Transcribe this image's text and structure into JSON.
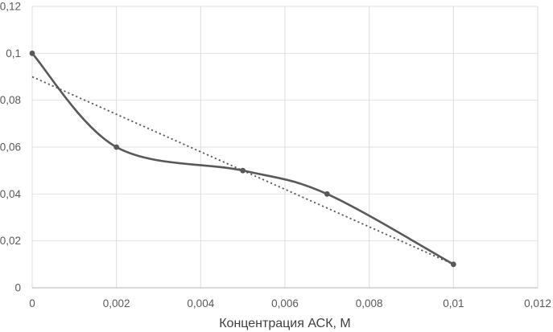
{
  "chart_data": {
    "type": "line",
    "title": "",
    "xlabel": "Концентрация АСК, М",
    "ylabel": "",
    "x": [
      0,
      0.002,
      0.005,
      0.007,
      0.01
    ],
    "series": [
      {
        "values": [
          0.1,
          0.06,
          0.05,
          0.04,
          0.01
        ],
        "smooth": true,
        "markers": true,
        "color": "#595959",
        "line_width": 2.6,
        "marker_radius": 3.4
      }
    ],
    "trendline": {
      "x": [
        0,
        0.01
      ],
      "values": [
        0.09,
        0.01
      ],
      "style": "dotted",
      "color": "#595959",
      "line_width": 1.8
    },
    "xlim": [
      0,
      0.012
    ],
    "ylim": [
      0,
      0.12
    ],
    "xticks": [
      0,
      0.002,
      0.004,
      0.006,
      0.008,
      0.01,
      0.012
    ],
    "yticks": [
      0,
      0.02,
      0.04,
      0.06,
      0.08,
      0.1,
      0.12
    ],
    "xtick_labels": [
      "0",
      "0,002",
      "0,004",
      "0,006",
      "0,008",
      "0,01",
      "0,012"
    ],
    "ytick_labels": [
      "0",
      "0,02",
      "0,04",
      "0,06",
      "0,08",
      "0,1",
      "0,12"
    ],
    "grid": true,
    "legend": "none",
    "colors": {
      "background": "#ffffff",
      "gridline_horizontal": "#e2e2e2",
      "gridline_vertical": "#dcdcdc",
      "axis_line": "#c3c3c3",
      "tick_label": "#595959",
      "axis_title": "#3f3f3f"
    }
  }
}
